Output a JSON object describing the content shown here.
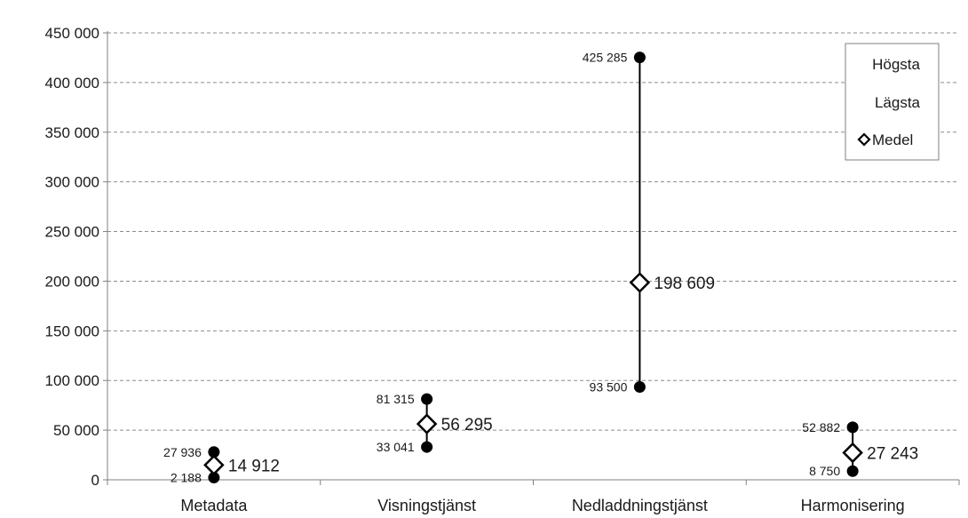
{
  "chart_data": {
    "type": "scatter",
    "title": "",
    "xlabel": "",
    "ylabel": "",
    "ylim": [
      0,
      450000
    ],
    "yticks": [
      0,
      50000,
      100000,
      150000,
      200000,
      250000,
      300000,
      350000,
      400000,
      450000
    ],
    "ytick_labels": [
      "0",
      "50 000",
      "100 000",
      "150 000",
      "200 000",
      "250 000",
      "300 000",
      "350 000",
      "400 000",
      "450 000"
    ],
    "grid": true,
    "legend_position": "top-right",
    "categories": [
      "Metadata",
      "Visningstjänst",
      "Nedladdningstjänst",
      "Harmonisering"
    ],
    "series": [
      {
        "name": "Högsta",
        "values": [
          27936,
          81315,
          425285,
          52882
        ],
        "labels": [
          "27 936",
          "81 315",
          "425 285",
          "52 882"
        ],
        "marker": "circle"
      },
      {
        "name": "Lägsta",
        "values": [
          2188,
          33041,
          93500,
          8750
        ],
        "labels": [
          "2 188",
          "33 041",
          "93 500",
          "8 750"
        ],
        "marker": "circle"
      },
      {
        "name": "Medel",
        "values": [
          14912,
          56295,
          198609,
          27243
        ],
        "labels": [
          "14 912",
          "56 295",
          "198 609",
          "27 243"
        ],
        "marker": "diamond"
      }
    ],
    "colors": {
      "marker": "#000000",
      "grid": "#8c8c8c",
      "axis": "#808080"
    }
  }
}
